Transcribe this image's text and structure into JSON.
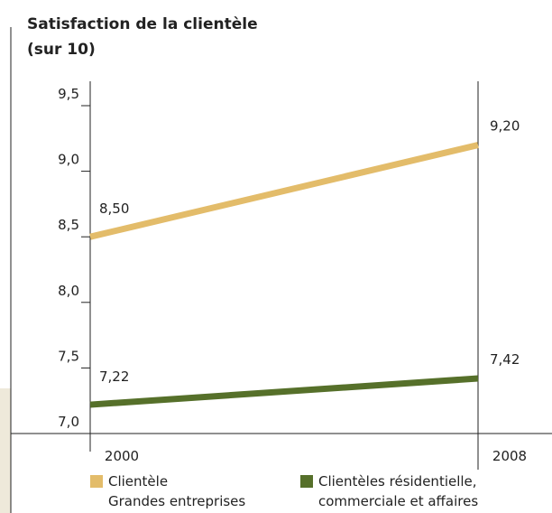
{
  "chart_data": {
    "type": "line",
    "title": "Satisfaction de la clientèle",
    "subtitle": "(sur 10)",
    "categories": [
      "2000",
      "2008"
    ],
    "series": [
      {
        "name": "Clientèle\nGrandes entreprises",
        "color": "#e3bc6a",
        "values": [
          8.5,
          9.2
        ],
        "value_labels": [
          "8,50",
          "9,20"
        ]
      },
      {
        "name": "Clientèles résidentielle,\ncommerciale et affaires",
        "color": "#56702a",
        "values": [
          7.22,
          7.42
        ],
        "value_labels": [
          "7,22",
          "7,42"
        ]
      }
    ],
    "ylim": [
      7.0,
      9.5
    ],
    "yticks": [
      {
        "value": 7.0,
        "label": "7,0"
      },
      {
        "value": 7.5,
        "label": "7,5"
      },
      {
        "value": 8.0,
        "label": "8,0"
      },
      {
        "value": 8.5,
        "label": "8,5"
      },
      {
        "value": 9.0,
        "label": "9,0"
      },
      {
        "value": 9.5,
        "label": "9,5"
      }
    ],
    "grid": false
  }
}
